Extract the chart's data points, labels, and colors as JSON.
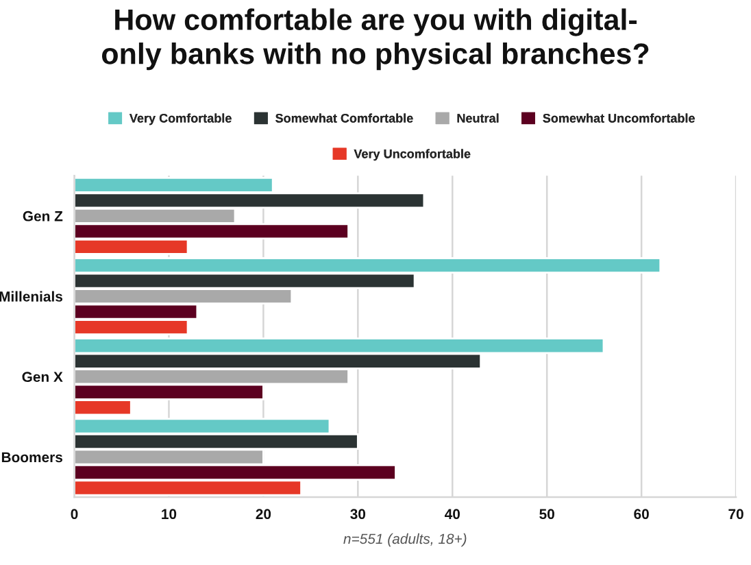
{
  "chart_data": {
    "type": "bar",
    "orientation": "horizontal",
    "title": "How comfortable are you with digital-\nonly banks with no physical branches?",
    "xlabel": "n=551 (adults, 18+)",
    "categories": [
      "Gen Z",
      "Millenials",
      "Gen X",
      "Boomers"
    ],
    "series": [
      {
        "name": "Very Comfortable",
        "color": "#64c9c6",
        "values": [
          21,
          62,
          56,
          27
        ]
      },
      {
        "name": "Somewhat Comfortable",
        "color": "#2b3333",
        "values": [
          37,
          36,
          43,
          30
        ]
      },
      {
        "name": "Neutral",
        "color": "#a9a9a9",
        "values": [
          17,
          23,
          29,
          20
        ]
      },
      {
        "name": "Somewhat Uncomfortable",
        "color": "#5c0020",
        "values": [
          29,
          13,
          20,
          34
        ]
      },
      {
        "name": "Very Uncomfortable",
        "color": "#e63827",
        "values": [
          12,
          12,
          6,
          24
        ]
      }
    ],
    "xlim": [
      0,
      70
    ],
    "xticks": [
      0,
      10,
      20,
      30,
      40,
      50,
      60,
      70
    ],
    "grid": "x",
    "legend": "top"
  }
}
